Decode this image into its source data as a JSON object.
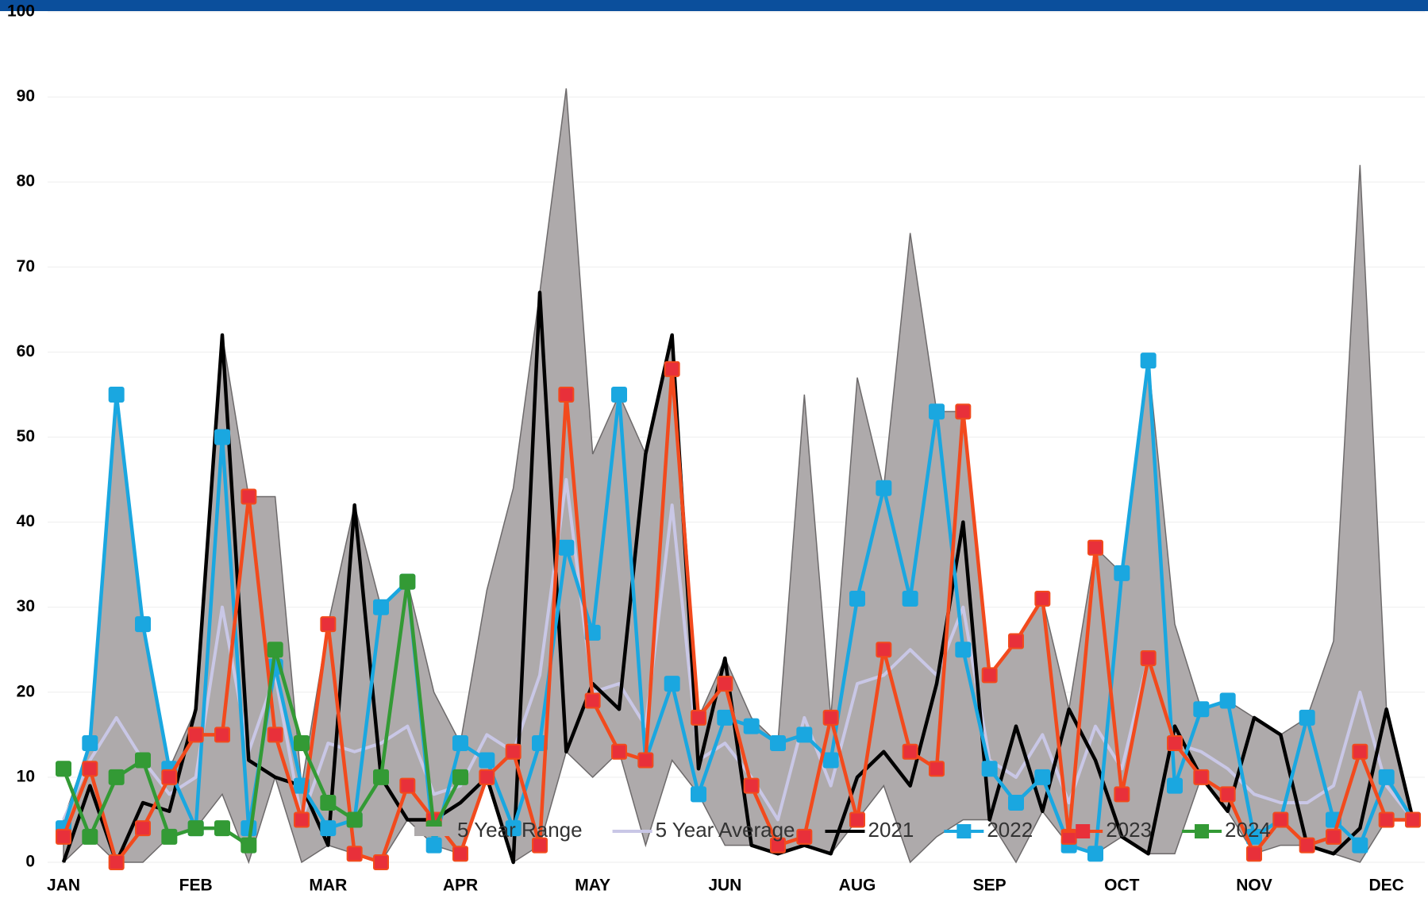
{
  "chart_data": {
    "type": "line",
    "categories": [
      "JAN",
      null,
      null,
      null,
      null,
      "FEB",
      null,
      null,
      null,
      null,
      "MAR",
      null,
      null,
      null,
      null,
      "APR",
      null,
      null,
      null,
      null,
      "MAY",
      null,
      null,
      null,
      null,
      "JUN",
      null,
      null,
      null,
      null,
      "AUG",
      null,
      null,
      null,
      null,
      "SEP",
      null,
      null,
      null,
      null,
      "OCT",
      null,
      null,
      null,
      null,
      "NOV",
      null,
      null,
      null,
      null,
      "DEC",
      null
    ],
    "ylim": [
      0,
      100
    ],
    "yticks": [
      0,
      10,
      20,
      30,
      40,
      50,
      60,
      70,
      80,
      90,
      100
    ],
    "grid": true,
    "legend": "bottom",
    "series": [
      {
        "name": "5 Year Range",
        "type": "range",
        "color": "#aeaaab",
        "low": [
          0,
          3,
          0,
          0,
          3,
          4,
          8,
          0,
          10,
          0,
          2,
          1,
          0,
          5,
          2,
          1,
          10,
          0,
          2,
          13,
          10,
          13,
          2,
          12,
          8,
          2,
          2,
          1,
          2,
          1,
          5,
          9,
          0,
          3,
          5,
          5,
          0,
          6,
          2,
          1,
          3,
          1,
          1,
          10,
          6,
          1,
          2,
          2,
          1,
          0,
          5,
          5
        ],
        "high": [
          5,
          14,
          55,
          28,
          11,
          18,
          62,
          43,
          43,
          9,
          28,
          42,
          30,
          33,
          20,
          14,
          32,
          44,
          67,
          91,
          48,
          55,
          48,
          62,
          17,
          24,
          17,
          14,
          55,
          17,
          57,
          44,
          74,
          53,
          53,
          22,
          26,
          31,
          18,
          37,
          34,
          59,
          28,
          18,
          19,
          17,
          15,
          17,
          26,
          82,
          18,
          5
        ]
      },
      {
        "name": "5 Year Average",
        "color": "#c9c7e6",
        "marker": "none",
        "values": [
          5,
          12,
          17,
          12,
          8,
          10,
          30,
          13,
          22,
          5,
          14,
          13,
          14,
          16,
          8,
          9,
          15,
          13,
          22,
          45,
          20,
          21,
          16,
          42,
          12,
          14,
          10,
          5,
          17,
          9,
          21,
          22,
          25,
          22,
          30,
          12,
          10,
          15,
          7,
          16,
          11,
          24,
          14,
          13,
          11,
          8,
          7,
          7,
          9,
          20,
          9,
          5
        ]
      },
      {
        "name": "2021",
        "color": "#000000",
        "marker": "none",
        "values": [
          0,
          9,
          0,
          7,
          6,
          18,
          62,
          12,
          10,
          9,
          2,
          42,
          10,
          5,
          5,
          7,
          10,
          0,
          67,
          13,
          21,
          18,
          48,
          62,
          11,
          24,
          2,
          1,
          2,
          1,
          10,
          13,
          9,
          21,
          40,
          5,
          16,
          6,
          18,
          12,
          3,
          1,
          16,
          10,
          6,
          17,
          15,
          2,
          1,
          4,
          18,
          5
        ]
      },
      {
        "name": "2022",
        "color": "#1aa7e0",
        "marker": "square",
        "values": [
          4,
          14,
          55,
          28,
          11,
          4,
          50,
          4,
          23,
          9,
          4,
          5,
          30,
          33,
          2,
          14,
          12,
          4,
          14,
          37,
          27,
          55,
          12,
          21,
          8,
          17,
          16,
          14,
          15,
          12,
          31,
          44,
          31,
          53,
          25,
          11,
          7,
          10,
          2,
          1,
          34,
          59,
          9,
          18,
          19,
          3,
          5,
          17,
          5,
          2,
          10,
          5
        ]
      },
      {
        "name": "2023",
        "color": "#f24a1d",
        "marker": "square",
        "markerColor": "#e8303a",
        "values": [
          3,
          11,
          0,
          4,
          10,
          15,
          15,
          43,
          15,
          5,
          28,
          1,
          0,
          9,
          5,
          1,
          10,
          13,
          2,
          55,
          19,
          13,
          12,
          58,
          17,
          21,
          9,
          2,
          3,
          17,
          5,
          25,
          13,
          11,
          53,
          22,
          26,
          31,
          3,
          37,
          8,
          24,
          14,
          10,
          8,
          1,
          5,
          2,
          3,
          13,
          5,
          5
        ]
      },
      {
        "name": "2024",
        "color": "#339a35",
        "marker": "square",
        "values": [
          11,
          3,
          10,
          12,
          3,
          4,
          4,
          2,
          25,
          14,
          7,
          5,
          10,
          33,
          4,
          10,
          null,
          null,
          null,
          null,
          null,
          null,
          null,
          null,
          null,
          null,
          null,
          null,
          null,
          null,
          null,
          null,
          null,
          null,
          null,
          null,
          null,
          null,
          null,
          null,
          null,
          null,
          null,
          null,
          null,
          null,
          null,
          null,
          null,
          null,
          null,
          null
        ]
      }
    ]
  }
}
